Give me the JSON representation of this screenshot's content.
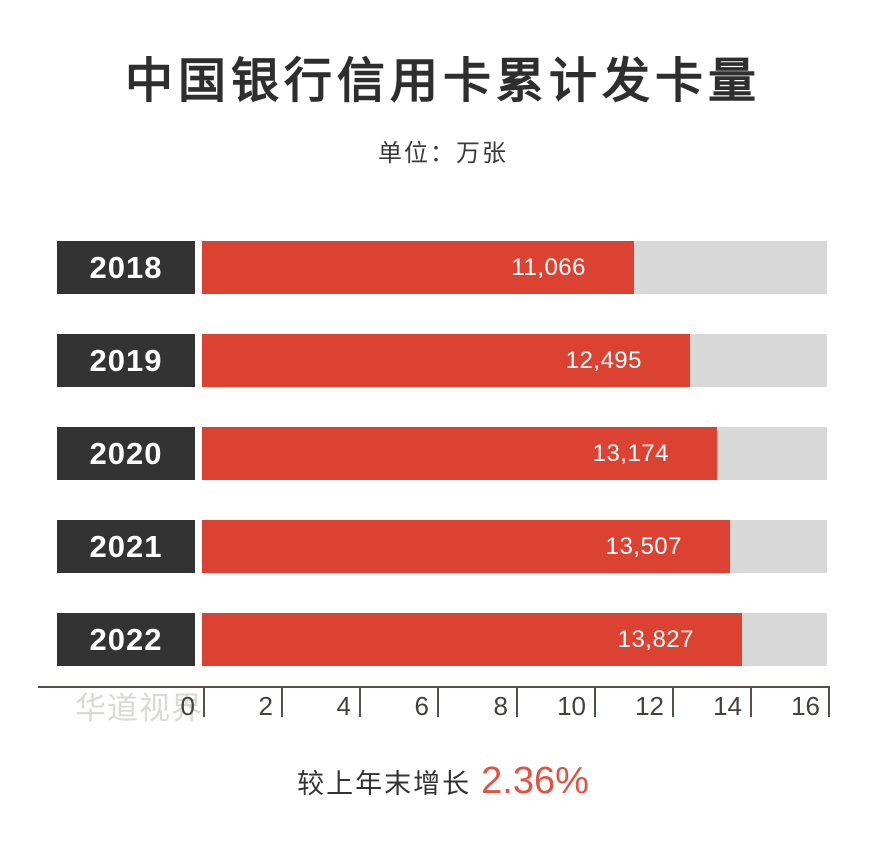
{
  "header": {
    "title": "中国银行信用卡累计发卡量",
    "subtitle": "单位：万张"
  },
  "chart_data": {
    "type": "bar",
    "orientation": "horizontal",
    "title": "中国银行信用卡累计发卡量",
    "unit": "万张",
    "categories": [
      "2018",
      "2019",
      "2020",
      "2021",
      "2022"
    ],
    "values": [
      11066,
      12495,
      13174,
      13507,
      13827
    ],
    "value_labels": [
      "11,066",
      "12,495",
      "13,174",
      "13,507",
      "13,827"
    ],
    "xlim": [
      0,
      16
    ],
    "x_tick_labels": [
      "0",
      "2",
      "4",
      "6",
      "8",
      "10",
      "12",
      "14",
      "16"
    ],
    "axis_value_divisor": 1000,
    "grid": false,
    "legend": false
  },
  "footer": {
    "growth_label": "较上年末增长",
    "growth_value": "2.36%"
  },
  "watermark": {
    "text": "华道视界"
  },
  "colors": {
    "bar_red": "#dc4232",
    "year_box": "#333333",
    "track_gray": "#d8d8d8",
    "axis_line": "#55504b",
    "percent_red": "#e25243",
    "title_text": "#2e2e2e"
  }
}
